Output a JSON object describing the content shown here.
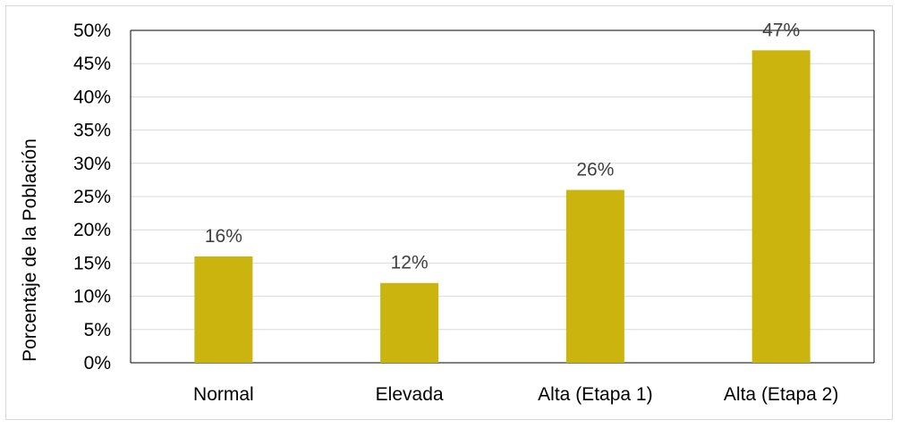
{
  "chart_data": {
    "type": "bar",
    "title": "",
    "xlabel": "",
    "ylabel": "Porcentaje de la Población",
    "categories": [
      "Normal",
      "Elevada",
      "Alta (Etapa 1)",
      "Alta (Etapa 2)"
    ],
    "values": [
      16,
      12,
      26,
      47
    ],
    "data_labels": [
      "16%",
      "12%",
      "26%",
      "47%"
    ],
    "ylim": [
      0,
      50
    ],
    "yticks": [
      0,
      5,
      10,
      15,
      20,
      25,
      30,
      35,
      40,
      45,
      50
    ],
    "ytick_labels": [
      "0%",
      "5%",
      "10%",
      "15%",
      "20%",
      "25%",
      "30%",
      "35%",
      "40%",
      "45%",
      "50%"
    ],
    "grid": true,
    "legend": "none",
    "bar_color": "#CCB40F",
    "grid_color": "#d9d9d9"
  }
}
